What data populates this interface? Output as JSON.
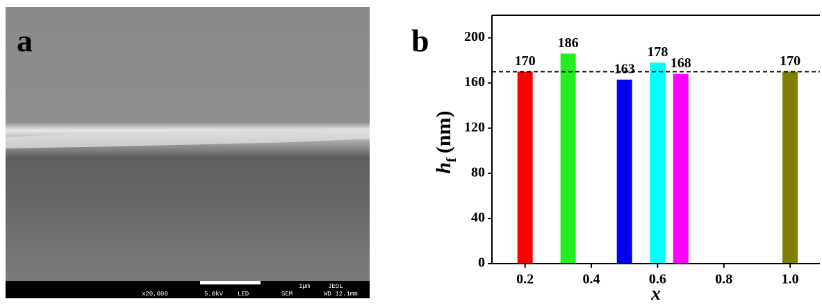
{
  "panel_a": {
    "label": "a",
    "info_bar": {
      "magnification": "x20,000",
      "voltage": "5.0kV",
      "mode": "LED",
      "scale": "1μm",
      "brand": "JEOL",
      "detector": "SEM",
      "working_distance": "WD 12.1mm"
    }
  },
  "chart_data": {
    "type": "bar",
    "panel_label": "b",
    "ylabel": "h",
    "ylabel_sub": "f",
    "ylabel_unit": "(nm)",
    "xlabel": "x",
    "x": [
      0.2,
      0.33,
      0.5,
      0.6,
      0.67,
      1.0
    ],
    "values": [
      170,
      186,
      163,
      178,
      168,
      170
    ],
    "colors": [
      "#ff0000",
      "#22ee22",
      "#0000ee",
      "#00ffff",
      "#ff00ff",
      "#808000"
    ],
    "reference_line": 170,
    "xlim": [
      0.1,
      1.09
    ],
    "xticks": [
      {
        "value": 0.2,
        "label": "0.2"
      },
      {
        "value": 0.4,
        "label": "0.4"
      },
      {
        "value": 0.6,
        "label": "0.6"
      },
      {
        "value": 0.8,
        "label": "0.8"
      },
      {
        "value": 1.0,
        "label": "1.0"
      }
    ],
    "ylim": [
      0,
      220
    ],
    "yticks": [
      0,
      40,
      80,
      120,
      160,
      200
    ]
  }
}
